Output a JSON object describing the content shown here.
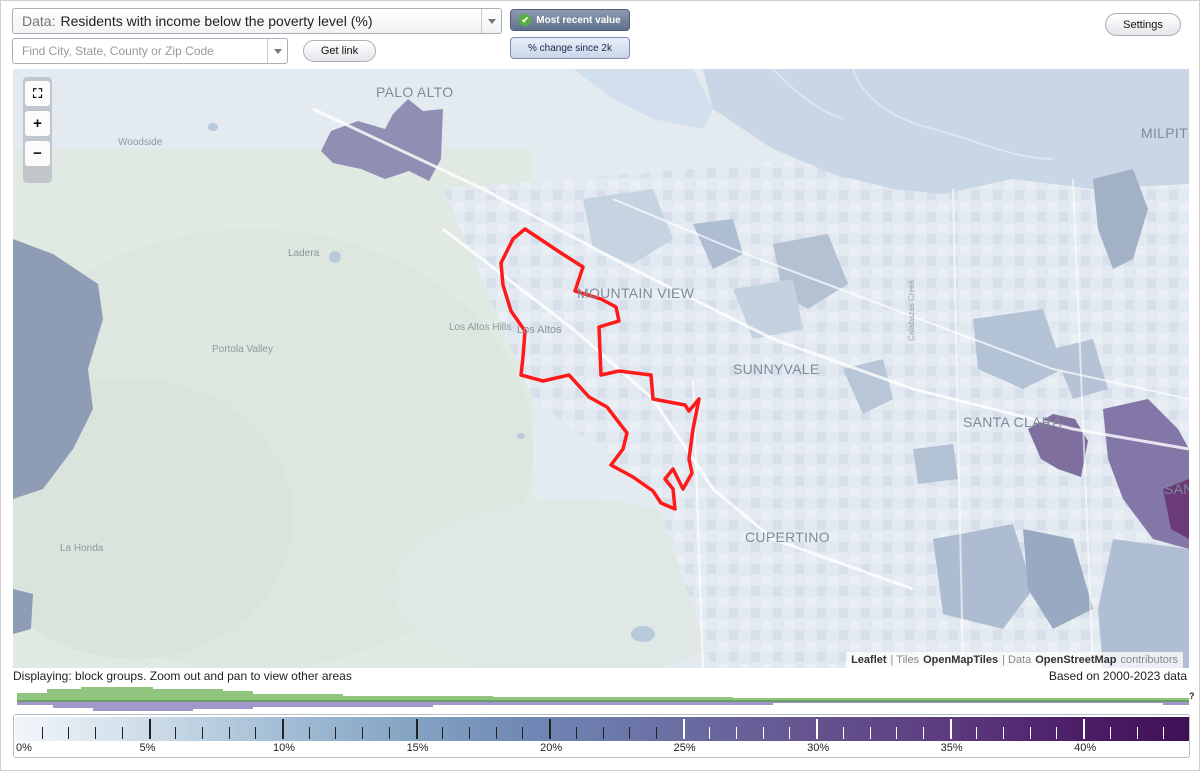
{
  "controls": {
    "data_prefix": "Data:",
    "data_value": "Residents with income below the poverty level (%)",
    "find_placeholder": "Find City, State, County or Zip Code",
    "get_link": "Get link",
    "settings": "Settings",
    "mode_active": "Most recent value",
    "mode_inactive": "% change since 2k"
  },
  "map": {
    "places": {
      "palo_alto": "PALO ALTO",
      "milpitas": "MILPIT",
      "woodside": "Woodside",
      "ladera": "Ladera",
      "mountain_view": "MOUNTAIN VIEW",
      "los_altos_hills": "Los Altos Hills",
      "los_altos": "Los Altos",
      "portola_valley": "Portola Valley",
      "sunnyvale": "SUNNYVALE",
      "santa_clara": "SANTA CLARA",
      "san_jose_partial": "SAN",
      "cupertino": "CUPERTINO",
      "la_honda": "La Honda",
      "creek": "Calabazas Creek"
    },
    "highlight_color": "#ff1a1a",
    "attribution": {
      "leaflet": "Leaflet",
      "sep1": "| Tiles",
      "tiles": "OpenMapTiles",
      "sep2": "| Data",
      "data": "OpenStreetMap",
      "contributors": "contributors"
    }
  },
  "status": {
    "displaying": "Displaying: block groups. Zoom out and pan to view other areas",
    "based_on": "Based on 2000-2023 data",
    "help": "?"
  },
  "legend": {
    "unit": "%",
    "min": 0,
    "max": 44,
    "labels": [
      "0%",
      "5%",
      "10%",
      "15%",
      "20%",
      "25%",
      "30%",
      "35%",
      "40%"
    ]
  }
}
